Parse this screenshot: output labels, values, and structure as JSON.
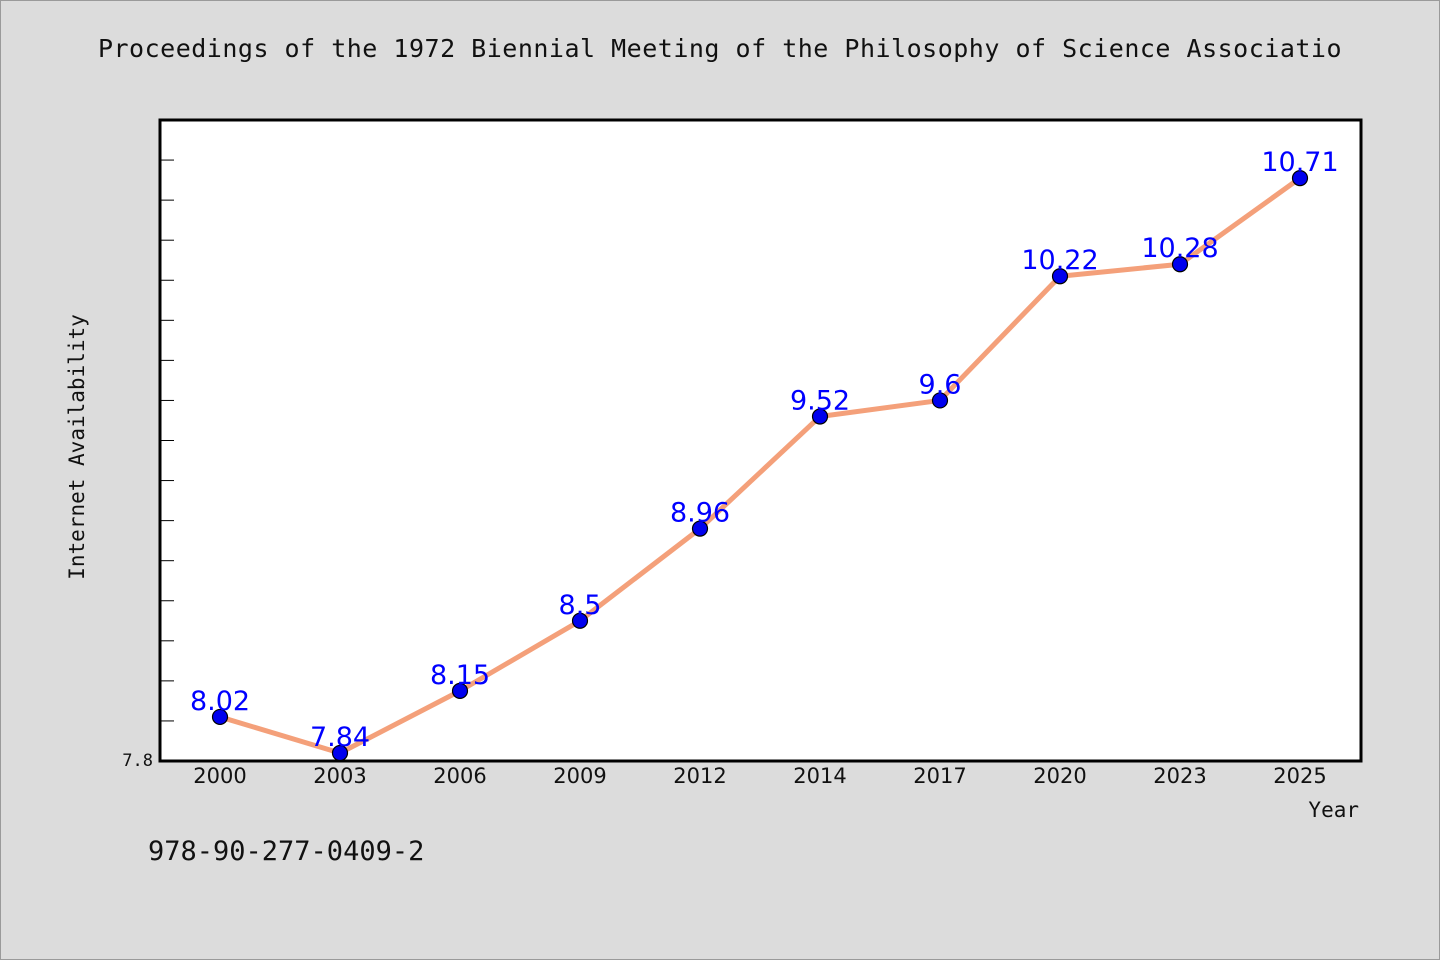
{
  "page": {
    "title": "Proceedings of the 1972 Biennial Meeting of the Philosophy of Science Associatio",
    "footer_id": "978-90-277-0409-2"
  },
  "chart_data": {
    "type": "line",
    "title": "Proceedings of the 1972 Biennial Meeting of the Philosophy of Science Associatio",
    "xlabel": "Year",
    "ylabel": "Internet Availability",
    "categories": [
      "2000",
      "2003",
      "2006",
      "2009",
      "2012",
      "2014",
      "2017",
      "2020",
      "2023",
      "2025"
    ],
    "series": [
      {
        "values": [
          8.02,
          7.84,
          8.15,
          8.5,
          8.96,
          9.52,
          9.6,
          10.22,
          10.28,
          10.71
        ],
        "labels": [
          "8.02",
          "7.84",
          "8.15",
          "8.5",
          "8.96",
          "9.52",
          "9.6",
          "10.22",
          "10.28",
          "10.71"
        ]
      }
    ],
    "ylim": [
      7.8,
      11.0
    ],
    "y_tick_labels_shown": [
      "7.8"
    ],
    "grid": false,
    "colors": {
      "line": "#f4a07a",
      "marker": "#0000ee",
      "marker_edge": "#000000",
      "data_label": "#0000ff",
      "plot_background": "#ffffff",
      "page_background": "#dcdcdc"
    }
  }
}
